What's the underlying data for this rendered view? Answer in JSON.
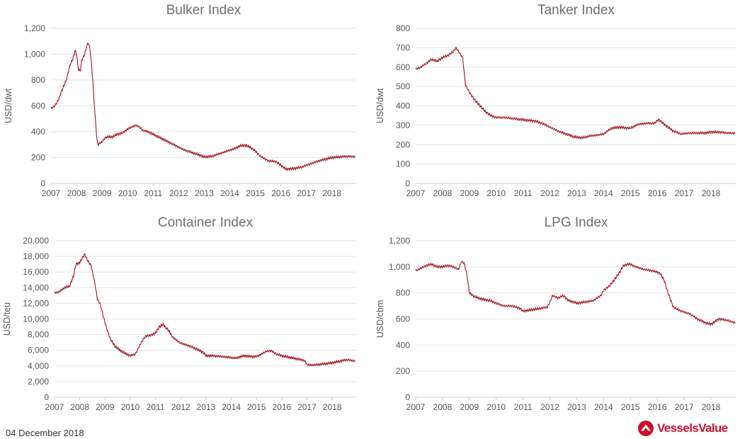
{
  "footer": {
    "date": "04 December 2018",
    "brand": "VesselsValue",
    "brand_color": "#c8102e",
    "brand_icon": "vesselsvalue-logo-icon"
  },
  "chart_data": [
    {
      "type": "line",
      "title": "Bulker Index",
      "ylabel": "USD/dwt",
      "ylim": [
        0,
        1200
      ],
      "yticks": [
        0,
        200,
        400,
        600,
        800,
        1000,
        1200
      ],
      "yticklabels": [
        "0",
        "200",
        "400",
        "600",
        "800",
        "1,000",
        "1,200"
      ],
      "xlim": [
        2007,
        2018.95
      ],
      "xticks": [
        "2007",
        "2008",
        "2009",
        "2010",
        "2011",
        "2012",
        "2013",
        "2014",
        "2015",
        "2016",
        "2017",
        "2018"
      ],
      "color": "#a3141e",
      "grid": true,
      "series": [
        {
          "name": "",
          "x": [
            2007.0,
            2007.15,
            2007.3,
            2007.45,
            2007.6,
            2007.75,
            2007.85,
            2007.95,
            2008.0,
            2008.08,
            2008.15,
            2008.2,
            2008.3,
            2008.4,
            2008.45,
            2008.52,
            2008.6,
            2008.7,
            2008.8,
            2008.85,
            2008.9,
            2009.0,
            2009.1,
            2009.2,
            2009.4,
            2009.6,
            2009.8,
            2010.0,
            2010.2,
            2010.35,
            2010.5,
            2010.6,
            2010.8,
            2011.0,
            2011.3,
            2011.6,
            2011.9,
            2012.2,
            2012.5,
            2012.8,
            2013.0,
            2013.3,
            2013.6,
            2013.9,
            2014.2,
            2014.4,
            2014.6,
            2014.8,
            2015.0,
            2015.2,
            2015.5,
            2015.8,
            2016.0,
            2016.2,
            2016.5,
            2016.8,
            2017.0,
            2017.2,
            2017.5,
            2017.8,
            2018.0,
            2018.3,
            2018.6,
            2018.9
          ],
          "y": [
            580,
            600,
            650,
            730,
            800,
            920,
            960,
            1030,
            1000,
            880,
            870,
            950,
            990,
            1060,
            1090,
            1050,
            900,
            600,
            330,
            300,
            310,
            320,
            350,
            360,
            360,
            380,
            390,
            420,
            440,
            450,
            430,
            410,
            400,
            380,
            350,
            320,
            290,
            260,
            240,
            220,
            205,
            210,
            230,
            250,
            270,
            290,
            295,
            280,
            250,
            210,
            175,
            170,
            140,
            110,
            115,
            125,
            140,
            155,
            175,
            190,
            200,
            205,
            210,
            205
          ]
        }
      ]
    },
    {
      "type": "line",
      "title": "Tanker Index",
      "ylabel": "USD/dwt",
      "ylim": [
        0,
        800
      ],
      "yticks": [
        0,
        100,
        200,
        300,
        400,
        500,
        600,
        700,
        800
      ],
      "yticklabels": [
        "0",
        "100",
        "200",
        "300",
        "400",
        "500",
        "600",
        "700",
        "800"
      ],
      "xlim": [
        2007,
        2018.95
      ],
      "xticks": [
        "2007",
        "2008",
        "2009",
        "2010",
        "2011",
        "2012",
        "2013",
        "2014",
        "2015",
        "2016",
        "2017",
        "2018"
      ],
      "color": "#a3141e",
      "grid": true,
      "series": [
        {
          "name": "",
          "x": [
            2007.0,
            2007.2,
            2007.4,
            2007.6,
            2007.8,
            2008.0,
            2008.2,
            2008.4,
            2008.5,
            2008.6,
            2008.75,
            2008.85,
            2009.0,
            2009.2,
            2009.4,
            2009.6,
            2009.8,
            2010.0,
            2010.3,
            2010.6,
            2010.9,
            2011.2,
            2011.5,
            2011.8,
            2012.0,
            2012.3,
            2012.6,
            2012.9,
            2013.2,
            2013.5,
            2013.8,
            2014.0,
            2014.3,
            2014.6,
            2014.9,
            2015.0,
            2015.3,
            2015.6,
            2015.9,
            2016.05,
            2016.3,
            2016.6,
            2016.9,
            2017.2,
            2017.5,
            2017.8,
            2018.0,
            2018.3,
            2018.6,
            2018.9
          ],
          "y": [
            590,
            600,
            620,
            640,
            630,
            650,
            660,
            680,
            700,
            680,
            650,
            510,
            470,
            430,
            400,
            370,
            350,
            340,
            340,
            335,
            330,
            325,
            320,
            305,
            290,
            270,
            255,
            240,
            235,
            245,
            250,
            255,
            285,
            290,
            285,
            285,
            305,
            310,
            310,
            330,
            300,
            270,
            255,
            260,
            260,
            260,
            265,
            265,
            260,
            258
          ]
        }
      ]
    },
    {
      "type": "line",
      "title": "Container Index",
      "ylabel": "USD/teu",
      "ylim": [
        0,
        20000
      ],
      "yticks": [
        0,
        2000,
        4000,
        6000,
        8000,
        10000,
        12000,
        14000,
        16000,
        18000,
        20000
      ],
      "yticklabels": [
        "0",
        "2,000",
        "4,000",
        "6,000",
        "8,000",
        "10,000",
        "12,000",
        "14,000",
        "16,000",
        "18,000",
        "20,000"
      ],
      "xlim": [
        2007,
        2018.95
      ],
      "xticks": [
        "2007",
        "2008",
        "2009",
        "2010",
        "2011",
        "2012",
        "2013",
        "2014",
        "2015",
        "2016",
        "2017",
        "2018"
      ],
      "color": "#a3141e",
      "grid": true,
      "series": [
        {
          "name": "",
          "x": [
            2007.0,
            2007.2,
            2007.4,
            2007.6,
            2007.75,
            2007.85,
            2008.0,
            2008.1,
            2008.2,
            2008.3,
            2008.45,
            2008.6,
            2008.7,
            2008.8,
            2009.0,
            2009.2,
            2009.4,
            2009.6,
            2009.8,
            2010.0,
            2010.2,
            2010.4,
            2010.6,
            2010.8,
            2011.0,
            2011.15,
            2011.3,
            2011.5,
            2011.7,
            2012.0,
            2012.3,
            2012.6,
            2012.9,
            2013.0,
            2013.3,
            2013.6,
            2013.9,
            2014.2,
            2014.5,
            2014.8,
            2015.0,
            2015.2,
            2015.4,
            2015.6,
            2015.8,
            2016.0,
            2016.3,
            2016.6,
            2016.9,
            2017.0,
            2017.2,
            2017.5,
            2017.8,
            2018.0,
            2018.3,
            2018.6,
            2018.9
          ],
          "y": [
            13300,
            13500,
            14000,
            14200,
            15500,
            17000,
            17200,
            17800,
            18300,
            17500,
            16800,
            14500,
            12500,
            12000,
            9500,
            7500,
            6500,
            6000,
            5600,
            5300,
            5500,
            6800,
            7800,
            7900,
            8200,
            9000,
            9300,
            8600,
            7600,
            6900,
            6600,
            6200,
            5700,
            5300,
            5300,
            5200,
            5100,
            5000,
            5300,
            5200,
            5200,
            5500,
            5900,
            5900,
            5500,
            5300,
            5100,
            4900,
            4700,
            4200,
            4100,
            4200,
            4300,
            4400,
            4600,
            4800,
            4600
          ]
        }
      ]
    },
    {
      "type": "line",
      "title": "LPG Index",
      "ylabel": "USD/cbm",
      "ylim": [
        0,
        1200
      ],
      "yticks": [
        0,
        200,
        400,
        600,
        800,
        1000,
        1200
      ],
      "yticklabels": [
        "0",
        "200",
        "400",
        "600",
        "800",
        "1,000",
        "1,200"
      ],
      "xlim": [
        2007,
        2018.95
      ],
      "xticks": [
        "2007",
        "2008",
        "2009",
        "2010",
        "2011",
        "2012",
        "2013",
        "2014",
        "2015",
        "2016",
        "2017",
        "2018"
      ],
      "color": "#a3141e",
      "grid": true,
      "series": [
        {
          "name": "",
          "x": [
            2007.0,
            2007.2,
            2007.4,
            2007.6,
            2007.8,
            2008.0,
            2008.2,
            2008.4,
            2008.6,
            2008.7,
            2008.8,
            2008.9,
            2009.0,
            2009.2,
            2009.5,
            2009.8,
            2010.0,
            2010.3,
            2010.6,
            2010.9,
            2011.0,
            2011.3,
            2011.6,
            2011.9,
            2012.0,
            2012.1,
            2012.3,
            2012.5,
            2012.7,
            2012.9,
            2013.0,
            2013.3,
            2013.6,
            2013.9,
            2014.0,
            2014.2,
            2014.4,
            2014.6,
            2014.75,
            2014.9,
            2015.0,
            2015.2,
            2015.5,
            2015.8,
            2016.0,
            2016.1,
            2016.25,
            2016.4,
            2016.6,
            2016.9,
            2017.2,
            2017.5,
            2017.8,
            2018.0,
            2018.3,
            2018.6,
            2018.9
          ],
          "y": [
            970,
            990,
            1010,
            1020,
            1000,
            1000,
            1010,
            1000,
            980,
            1040,
            1030,
            950,
            800,
            770,
            750,
            740,
            720,
            700,
            700,
            680,
            660,
            670,
            680,
            690,
            730,
            780,
            760,
            780,
            740,
            730,
            720,
            730,
            740,
            780,
            820,
            850,
            900,
            960,
            1010,
            1020,
            1020,
            1000,
            980,
            970,
            960,
            950,
            900,
            800,
            690,
            660,
            640,
            600,
            570,
            560,
            600,
            590,
            570
          ]
        }
      ]
    }
  ]
}
